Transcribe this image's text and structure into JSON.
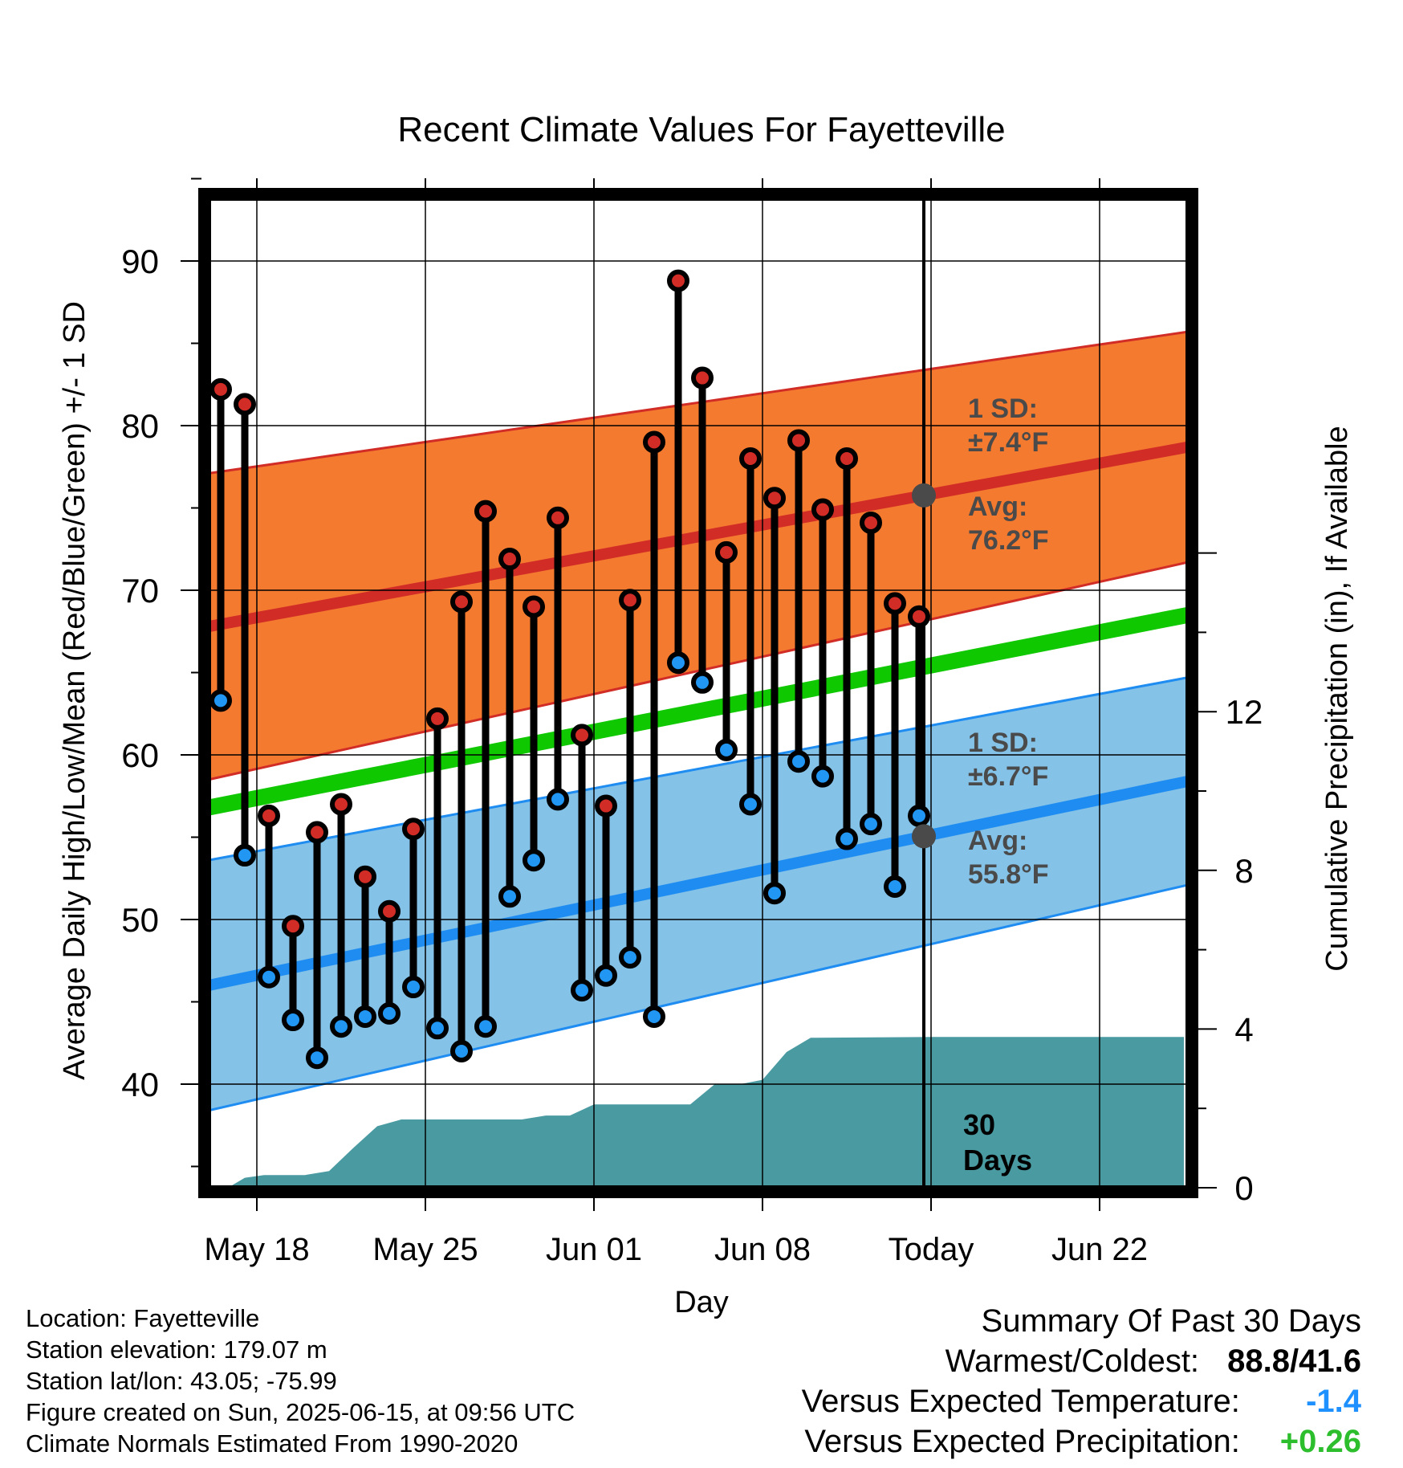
{
  "chart_data": {
    "type": "line",
    "title": "Recent Climate Values For Fayetteville",
    "xlabel": "Day",
    "ylabel": "Average Daily High/Low/Mean (Red/Blue/Green) +/- 1 SD",
    "y2label": "Cumulative Precipitation (in), If Available",
    "x_tick_labels": [
      "May 18",
      "May 25",
      "Jun 01",
      "Jun 08",
      "Today",
      "Jun 22"
    ],
    "y_ticks": [
      "40",
      "50",
      "60",
      "70",
      "80",
      "90"
    ],
    "y2_ticks": [
      "0",
      "4",
      "8",
      "12"
    ],
    "ylim": [
      34,
      95
    ],
    "y2lim": [
      0,
      24
    ],
    "grid": true,
    "days_window_label": "30 Days",
    "colors": {
      "high_band": "#f47a30",
      "high_line": "#d12c26",
      "low_band": "#84c2e8",
      "low_line": "#1e8cf0",
      "mean_line": "#10c800",
      "precip": "#4a9aa2",
      "high_marker": "#d12c26",
      "low_marker": "#2196f3",
      "avg_marker": "#4a4a4a"
    },
    "normals": {
      "high_avg_start": 67.8,
      "high_avg_end": 78.7,
      "high_sd_start": 9.3,
      "high_sd_end": 7.0,
      "low_avg_start": 46.0,
      "low_avg_end": 58.4,
      "low_sd_start": 7.6,
      "low_sd_end": 6.3,
      "mean_start": 56.8,
      "mean_end": 68.5
    },
    "annotations": {
      "high_sd_label": "1 SD:",
      "high_sd_value": "±7.4°F",
      "high_avg_label": "Avg:",
      "high_avg_value": "76.2°F",
      "low_sd_label": "1 SD:",
      "low_sd_value": "±6.7°F",
      "low_avg_label": "Avg:",
      "low_avg_value": "55.8°F"
    },
    "series": [
      {
        "name": "High",
        "values": [
          82.2,
          81.3,
          56.3,
          49.6,
          55.3,
          57.0,
          52.6,
          50.5,
          55.5,
          62.2,
          69.3,
          74.8,
          71.9,
          69.0,
          74.4,
          61.2,
          56.9,
          69.4,
          79.0,
          88.8,
          82.9,
          72.3,
          78.0,
          75.6,
          79.1,
          74.9,
          78.0,
          74.1,
          69.2,
          68.4
        ]
      },
      {
        "name": "Low",
        "values": [
          63.3,
          53.9,
          46.5,
          43.9,
          41.6,
          43.5,
          44.1,
          44.3,
          45.9,
          43.4,
          42.0,
          43.5,
          51.4,
          53.6,
          57.3,
          45.7,
          46.6,
          47.7,
          44.1,
          65.6,
          64.4,
          60.3,
          57.0,
          51.6,
          59.6,
          58.7,
          54.9,
          55.8,
          52.0,
          56.3
        ]
      }
    ],
    "precip_cumulative": [
      {
        "day": 0,
        "in": 0.0
      },
      {
        "day": 0.8,
        "in": 0.0
      },
      {
        "day": 1.5,
        "in": 0.25
      },
      {
        "day": 2.3,
        "in": 0.32
      },
      {
        "day": 4.0,
        "in": 0.32
      },
      {
        "day": 5.0,
        "in": 0.42
      },
      {
        "day": 6.0,
        "in": 1.0
      },
      {
        "day": 7.0,
        "in": 1.55
      },
      {
        "day": 8.0,
        "in": 1.72
      },
      {
        "day": 13.0,
        "in": 1.72
      },
      {
        "day": 14.0,
        "in": 1.82
      },
      {
        "day": 15.0,
        "in": 1.82
      },
      {
        "day": 16.0,
        "in": 2.1
      },
      {
        "day": 20.0,
        "in": 2.1
      },
      {
        "day": 21.0,
        "in": 2.6
      },
      {
        "day": 22.0,
        "in": 2.6
      },
      {
        "day": 23.0,
        "in": 2.72
      },
      {
        "day": 24.0,
        "in": 3.42
      },
      {
        "day": 25.0,
        "in": 3.78
      },
      {
        "day": 30.0,
        "in": 3.8
      },
      {
        "day": 40.5,
        "in": 3.8
      }
    ]
  },
  "footer": {
    "location": "Location: Fayetteville",
    "elevation": "Station elevation: 179.07 m",
    "latlon": "Station lat/lon: 43.05; -75.99",
    "created": "Figure created on Sun, 2025-06-15, at 09:56 UTC",
    "normals": "Climate Normals Estimated From 1990-2020"
  },
  "summary": {
    "title": "Summary Of Past 30 Days",
    "warmest_coldest_label": "Warmest/Coldest:",
    "warmest_coldest_value": "88.8/41.6",
    "temp_label": "Versus Expected Temperature:",
    "temp_value": "-1.4",
    "precip_label": "Versus Expected Precipitation:",
    "precip_value": "+0.26"
  }
}
